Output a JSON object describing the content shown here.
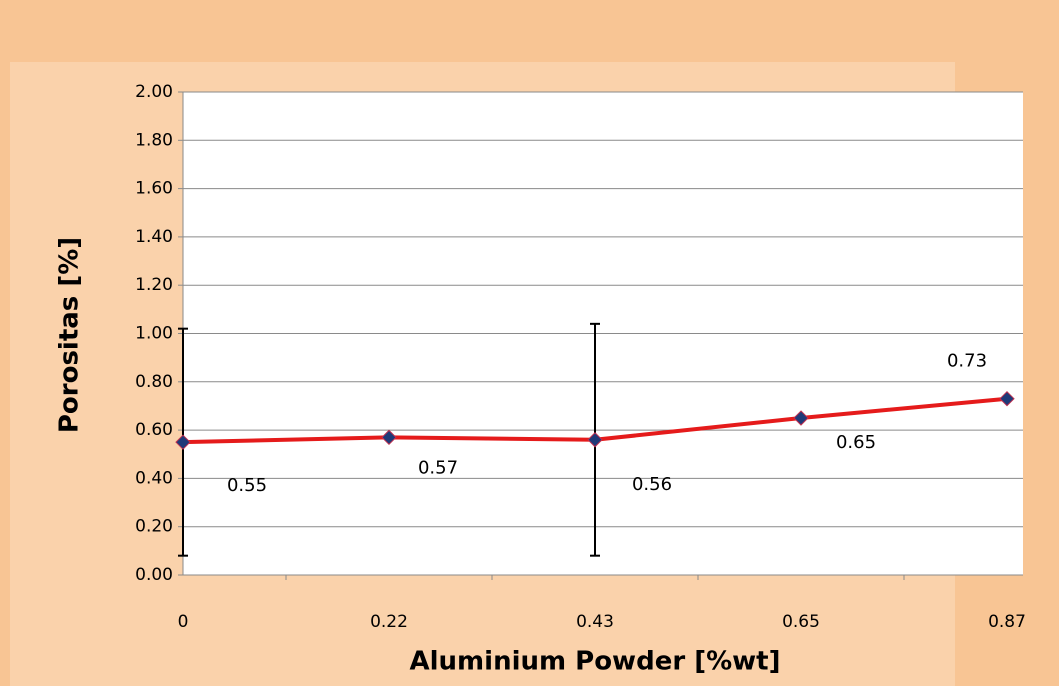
{
  "chart_data": {
    "type": "line",
    "x_label": "Aluminium Powder [%wt]",
    "y_label": "Porositas [%]",
    "categories": [
      "0",
      "0.22",
      "0.43",
      "0.65",
      "0.87"
    ],
    "values": [
      0.55,
      0.57,
      0.56,
      0.65,
      0.73
    ],
    "value_labels": [
      "0.55",
      "0.57",
      "0.56",
      "0.65",
      "0.73"
    ],
    "errors": [
      0.47,
      null,
      0.48,
      null,
      null
    ],
    "color": "#e51b1b",
    "marker_color": "#1f3a78",
    "ylim": [
      0,
      2
    ],
    "yticks": [
      {
        "value": 0,
        "label": "0.00"
      },
      {
        "value": 0.2,
        "label": "0.20"
      },
      {
        "value": 0.4,
        "label": "0.40"
      },
      {
        "value": 0.6,
        "label": "0.60"
      },
      {
        "value": 0.8,
        "label": "0.80"
      },
      {
        "value": 1,
        "label": "1.00"
      },
      {
        "value": 1.2,
        "label": "1.20"
      },
      {
        "value": 1.4,
        "label": "1.40"
      },
      {
        "value": 1.6,
        "label": "1.60"
      },
      {
        "value": 1.8,
        "label": "1.80"
      },
      {
        "value": 2,
        "label": "2.00"
      }
    ],
    "grid": true
  }
}
